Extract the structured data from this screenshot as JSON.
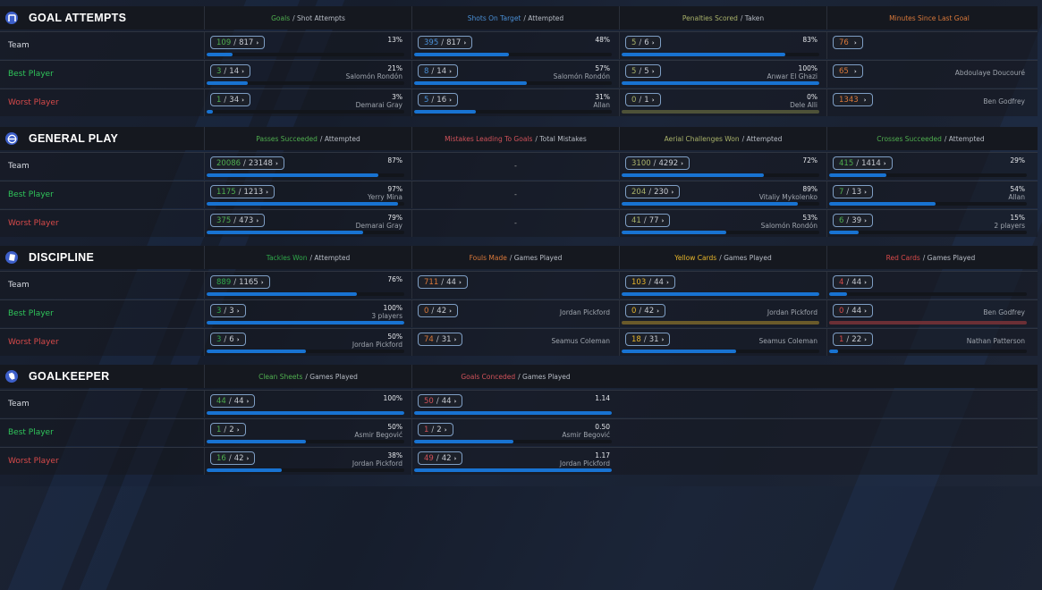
{
  "row_labels": {
    "team": "Team",
    "best": "Best Player",
    "worst": "Worst Player"
  },
  "colors": {
    "best_label": "#2fc45a",
    "worst_label": "#d84a4a",
    "bar": "#1873d2",
    "empty_yellow_track": "#6a5a2a",
    "empty_red_track": "#6b2f35",
    "empty_olive_track": "#4e5238"
  },
  "sections": [
    {
      "id": "goal-attempts",
      "title": "GOAL ATTEMPTS",
      "icon": "goal-icon",
      "columns": [
        {
          "primary": "Goals",
          "secondary": "/ Shot Attempts",
          "color": "#4fae4f",
          "rows": [
            {
              "num": "109",
              "den": "817",
              "pct": "13%",
              "player": "",
              "fill": 0.13
            },
            {
              "num": "3",
              "den": "14",
              "pct": "21%",
              "player": "Salomón Rondón",
              "fill": 0.21
            },
            {
              "num": "1",
              "den": "34",
              "pct": "3%",
              "player": "Demarai Gray",
              "fill": 0.03
            }
          ]
        },
        {
          "primary": "Shots On Target",
          "secondary": "/ Attempted",
          "color": "#4a8fd6",
          "rows": [
            {
              "num": "395",
              "den": "817",
              "pct": "48%",
              "player": "",
              "fill": 0.48
            },
            {
              "num": "8",
              "den": "14",
              "pct": "57%",
              "player": "Salomón Rondón",
              "fill": 0.57
            },
            {
              "num": "5",
              "den": "16",
              "pct": "31%",
              "player": "Allan",
              "fill": 0.31
            }
          ]
        },
        {
          "primary": "Penalties Scored",
          "secondary": "/ Taken",
          "color": "#a9b26a",
          "rows": [
            {
              "num": "5",
              "den": "6",
              "pct": "83%",
              "player": "",
              "fill": 0.83
            },
            {
              "num": "5",
              "den": "5",
              "pct": "100%",
              "player": "Anwar El Ghazi",
              "fill": 1.0
            },
            {
              "num": "0",
              "den": "1",
              "pct": "0%",
              "player": "Dele Alli",
              "fill": 0,
              "empty_track": "olive"
            }
          ]
        },
        {
          "primary": "Minutes Since Last Goal",
          "secondary": "",
          "color": "#d9783a",
          "single": true,
          "rows": [
            {
              "num": "76",
              "player": ""
            },
            {
              "num": "65",
              "player": "Abdoulaye Doucouré"
            },
            {
              "num": "1343",
              "player": "Ben Godfrey"
            }
          ]
        }
      ]
    },
    {
      "id": "general-play",
      "title": "GENERAL PLAY",
      "icon": "general-play-icon",
      "columns": [
        {
          "primary": "Passes Succeeded",
          "secondary": "/ Attempted",
          "color": "#4fae4f",
          "rows": [
            {
              "num": "20086",
              "den": "23148",
              "pct": "87%",
              "player": "",
              "fill": 0.87
            },
            {
              "num": "1175",
              "den": "1213",
              "pct": "97%",
              "player": "Yerry Mina",
              "fill": 0.97
            },
            {
              "num": "375",
              "den": "473",
              "pct": "79%",
              "player": "Demarai Gray",
              "fill": 0.79
            }
          ]
        },
        {
          "primary": "Mistakes Leading To Goals",
          "secondary": "/ Total Mistakes",
          "color": "#d0525a",
          "dash": true,
          "rows": [
            {
              "value": "-"
            },
            {
              "value": "-"
            },
            {
              "value": "-"
            }
          ]
        },
        {
          "primary": "Aerial Challenges Won",
          "secondary": "/ Attempted",
          "color": "#a9b26a",
          "rows": [
            {
              "num": "3100",
              "den": "4292",
              "pct": "72%",
              "player": "",
              "fill": 0.72
            },
            {
              "num": "204",
              "den": "230",
              "pct": "89%",
              "player": "Vitaliy Mykolenko",
              "fill": 0.89
            },
            {
              "num": "41",
              "den": "77",
              "pct": "53%",
              "player": "Salomón Rondón",
              "fill": 0.53
            }
          ]
        },
        {
          "primary": "Crosses Succeeded",
          "secondary": "/ Attempted",
          "color": "#4fae4f",
          "rows": [
            {
              "num": "415",
              "den": "1414",
              "pct": "29%",
              "player": "",
              "fill": 0.29
            },
            {
              "num": "7",
              "den": "13",
              "pct": "54%",
              "player": "Allan",
              "fill": 0.54
            },
            {
              "num": "6",
              "den": "39",
              "pct": "15%",
              "player": "2 players",
              "fill": 0.15
            }
          ]
        }
      ]
    },
    {
      "id": "discipline",
      "title": "DISCIPLINE",
      "icon": "discipline-icon",
      "columns": [
        {
          "primary": "Tackles Won",
          "secondary": "/ Attempted",
          "color": "#2fa84a",
          "rows": [
            {
              "num": "889",
              "den": "1165",
              "pct": "76%",
              "player": "",
              "fill": 0.76
            },
            {
              "num": "3",
              "den": "3",
              "pct": "100%",
              "player": "3 players",
              "fill": 1.0
            },
            {
              "num": "3",
              "den": "6",
              "pct": "50%",
              "player": "Jordan Pickford",
              "fill": 0.5
            }
          ]
        },
        {
          "primary": "Fouls Made",
          "secondary": "/ Games Played",
          "color": "#d9783a",
          "nobar": true,
          "rows": [
            {
              "num": "711",
              "den": "44",
              "player": ""
            },
            {
              "num": "0",
              "den": "42",
              "player": "Jordan Pickford"
            },
            {
              "num": "74",
              "den": "31",
              "player": "Seamus Coleman"
            }
          ]
        },
        {
          "primary": "Yellow Cards",
          "secondary": "/ Games Played",
          "color": "#e6b52b",
          "rows": [
            {
              "num": "103",
              "den": "44",
              "player": "",
              "fill": 1.0
            },
            {
              "num": "0",
              "den": "42",
              "player": "Jordan Pickford",
              "fill": 0,
              "empty_track": "yellow"
            },
            {
              "num": "18",
              "den": "31",
              "player": "Seamus Coleman",
              "fill": 0.58
            }
          ]
        },
        {
          "primary": "Red Cards",
          "secondary": "/ Games Played",
          "color": "#d84a4a",
          "rows": [
            {
              "num": "4",
              "den": "44",
              "player": "",
              "fill": 0.09
            },
            {
              "num": "0",
              "den": "44",
              "player": "Ben Godfrey",
              "fill": 0,
              "empty_track": "red"
            },
            {
              "num": "1",
              "den": "22",
              "player": "Nathan Patterson",
              "fill": 0.045
            }
          ]
        }
      ]
    },
    {
      "id": "goalkeeper",
      "title": "GOALKEEPER",
      "icon": "goalkeeper-glove-icon",
      "columns": [
        {
          "primary": "Clean Sheets",
          "secondary": "/ Games Played",
          "color": "#4fae4f",
          "rows": [
            {
              "num": "44",
              "den": "44",
              "pct": "100%",
              "player": "",
              "fill": 1.0
            },
            {
              "num": "1",
              "den": "2",
              "pct": "50%",
              "player": "Asmir Begović",
              "fill": 0.5
            },
            {
              "num": "16",
              "den": "42",
              "pct": "38%",
              "player": "Jordan Pickford",
              "fill": 0.38
            }
          ]
        },
        {
          "primary": "Goals Conceded",
          "secondary": "/ Games Played",
          "color": "#d0525a",
          "rows": [
            {
              "num": "50",
              "den": "44",
              "pct": "1.14",
              "player": "",
              "fill": 1.0
            },
            {
              "num": "1",
              "den": "2",
              "pct": "0.50",
              "player": "Asmir Begović",
              "fill": 0.5
            },
            {
              "num": "49",
              "den": "42",
              "pct": "1.17",
              "player": "Jordan Pickford",
              "fill": 1.0
            }
          ]
        }
      ]
    }
  ]
}
